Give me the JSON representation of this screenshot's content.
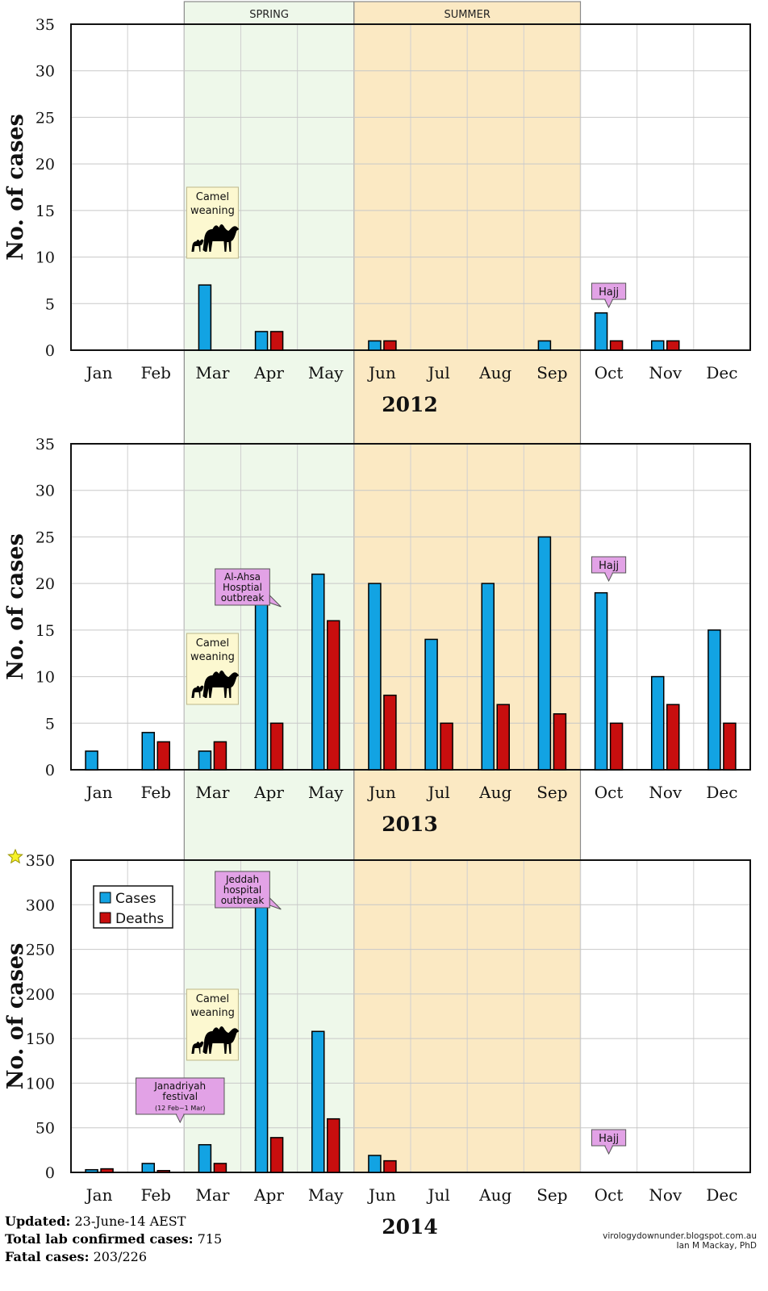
{
  "season_labels": {
    "spring": "SPRING",
    "summer": "SUMMER"
  },
  "colors": {
    "cases": "#12a3e3",
    "deaths": "#c80e0e",
    "spring_band": "#eef8ea",
    "summer_band": "#fbe9c3",
    "callout_pink": "#e2a2e6",
    "callout_yellow": "#fcf8d0",
    "star": "#f7f229"
  },
  "icons": {
    "camel": "camel-with-calf-icon",
    "star": "star-icon"
  },
  "chart_data": [
    {
      "type": "bar",
      "title": "2012",
      "ylabel": "No. of cases",
      "xlabel": "",
      "ylim": [
        0,
        35
      ],
      "yticks": [
        0,
        5,
        10,
        15,
        20,
        25,
        30,
        35
      ],
      "categories": [
        "Jan",
        "Feb",
        "Mar",
        "Apr",
        "May",
        "Jun",
        "Jul",
        "Aug",
        "Sep",
        "Oct",
        "Nov",
        "Dec"
      ],
      "series": [
        {
          "name": "Cases",
          "values": [
            0,
            0,
            7,
            2,
            0,
            1,
            0,
            0,
            1,
            4,
            1,
            0
          ]
        },
        {
          "name": "Deaths",
          "values": [
            0,
            0,
            0,
            2,
            0,
            1,
            0,
            0,
            0,
            1,
            1,
            0
          ]
        }
      ],
      "annotations": [
        {
          "kind": "camel",
          "lines": [
            "Camel",
            "weaning"
          ],
          "month": "Mar"
        },
        {
          "kind": "pink",
          "lines": [
            "Hajj"
          ],
          "month": "Oct"
        }
      ],
      "legend": null
    },
    {
      "type": "bar",
      "title": "2013",
      "ylabel": "No. of cases",
      "xlabel": "",
      "ylim": [
        0,
        35
      ],
      "yticks": [
        0,
        5,
        10,
        15,
        20,
        25,
        30,
        35
      ],
      "categories": [
        "Jan",
        "Feb",
        "Mar",
        "Apr",
        "May",
        "Jun",
        "Jul",
        "Aug",
        "Sep",
        "Oct",
        "Nov",
        "Dec"
      ],
      "series": [
        {
          "name": "Cases",
          "values": [
            2,
            4,
            2,
            19,
            21,
            20,
            14,
            20,
            25,
            19,
            10,
            15
          ]
        },
        {
          "name": "Deaths",
          "values": [
            0,
            3,
            3,
            5,
            16,
            8,
            5,
            7,
            6,
            5,
            7,
            5
          ]
        }
      ],
      "annotations": [
        {
          "kind": "pink",
          "lines": [
            "Al-Ahsa",
            "Hosptial",
            "outbreak"
          ],
          "month": "Apr"
        },
        {
          "kind": "camel",
          "lines": [
            "Camel",
            "weaning"
          ],
          "month": "Mar"
        },
        {
          "kind": "pink",
          "lines": [
            "Hajj"
          ],
          "month": "Oct"
        }
      ],
      "legend": null
    },
    {
      "type": "bar",
      "title": "2014",
      "ylabel": "No. of cases",
      "xlabel": "",
      "ylim": [
        0,
        350
      ],
      "yticks": [
        0,
        50,
        100,
        150,
        200,
        250,
        300,
        350
      ],
      "categories": [
        "Jan",
        "Feb",
        "Mar",
        "Apr",
        "May",
        "Jun",
        "Jul",
        "Aug",
        "Sep",
        "Oct",
        "Nov",
        "Dec"
      ],
      "series": [
        {
          "name": "Cases",
          "values": [
            3,
            10,
            31,
            307,
            158,
            19,
            0,
            0,
            0,
            0,
            0,
            0
          ]
        },
        {
          "name": "Deaths",
          "values": [
            4,
            2,
            10,
            39,
            60,
            13,
            0,
            0,
            0,
            0,
            0,
            0
          ]
        }
      ],
      "annotations": [
        {
          "kind": "pink",
          "lines": [
            "Jeddah",
            "hospital",
            "outbreak"
          ],
          "month": "Apr"
        },
        {
          "kind": "camel",
          "lines": [
            "Camel",
            "weaning"
          ],
          "month": "Mar"
        },
        {
          "kind": "pink",
          "lines": [
            "Janadriyah",
            "festival",
            "(12 Feb~1 Mar)"
          ],
          "month": "Feb"
        },
        {
          "kind": "pink",
          "lines": [
            "Hajj"
          ],
          "month": "Oct"
        }
      ],
      "legend": {
        "placement": "top-left",
        "entries": [
          "Cases",
          "Deaths"
        ]
      }
    }
  ],
  "footer": {
    "updated_label": "Updated:",
    "updated_value": "23-June-14 AEST",
    "total_label": "Total lab confirmed cases:",
    "total_value": "715",
    "fatal_label": "Fatal cases:",
    "fatal_value": "203/226",
    "site": "virologydownunder.blogspot.com.au",
    "author": "Ian M Mackay, PhD"
  }
}
